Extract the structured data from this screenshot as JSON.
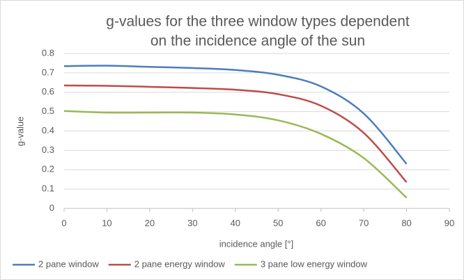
{
  "chart_data": {
    "type": "line",
    "title": [
      "g-values for the three window types dependent",
      "on the incidence angle of the sun"
    ],
    "x_label": "incidence angle [°]",
    "y_label": "g-value",
    "x": [
      0,
      10,
      20,
      30,
      40,
      50,
      60,
      70,
      80
    ],
    "series": [
      {
        "name": "2 pane window",
        "color": "#4a7ebb",
        "values": [
          0.735,
          0.737,
          0.731,
          0.725,
          0.715,
          0.69,
          0.63,
          0.49,
          0.23
        ]
      },
      {
        "name": "2 pane energy window",
        "color": "#be4b48",
        "values": [
          0.635,
          0.633,
          0.628,
          0.622,
          0.613,
          0.59,
          0.53,
          0.39,
          0.135
        ]
      },
      {
        "name": "3 pane low energy window",
        "color": "#98b954",
        "values": [
          0.503,
          0.495,
          0.495,
          0.495,
          0.485,
          0.455,
          0.385,
          0.26,
          0.055
        ]
      }
    ],
    "xlim": [
      0,
      90
    ],
    "xticks": [
      0,
      10,
      20,
      30,
      40,
      50,
      60,
      70,
      80,
      90
    ],
    "ylim": [
      0,
      0.8
    ],
    "yticks": [
      0,
      0.1,
      0.2,
      0.3,
      0.4,
      0.5,
      0.6,
      0.7,
      0.8
    ],
    "grid": true,
    "legend": "bottom",
    "smooth": true
  }
}
